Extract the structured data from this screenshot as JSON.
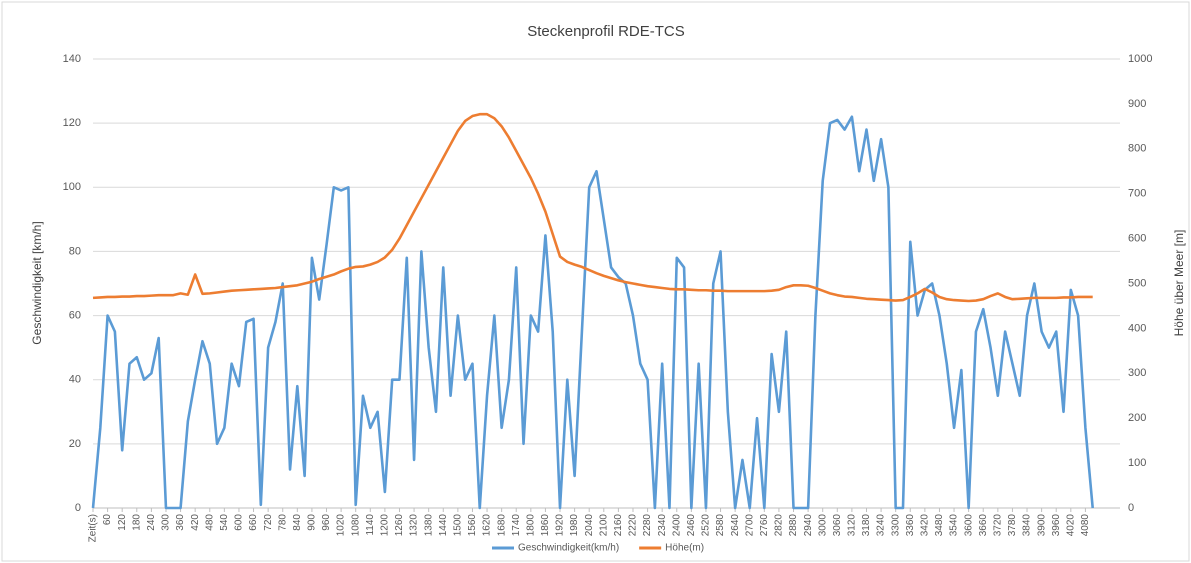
{
  "chart_data": {
    "type": "line",
    "title": "Steckenprofil RDE-TCS",
    "y_label": "Geschwindigkeit [km/h]",
    "y2_label": "Höhe über Meer [m]",
    "xlim": [
      0,
      4140
    ],
    "xticks": [
      {
        "value": 0,
        "label": "Zeit(s)"
      },
      60,
      120,
      180,
      240,
      300,
      360,
      420,
      480,
      540,
      600,
      660,
      720,
      780,
      840,
      900,
      960,
      1020,
      1080,
      1140,
      1200,
      1260,
      1320,
      1380,
      1440,
      1500,
      1560,
      1620,
      1680,
      1740,
      1800,
      1860,
      1920,
      1980,
      2040,
      2100,
      2160,
      2220,
      2280,
      2340,
      2400,
      2460,
      2520,
      2580,
      2640,
      2700,
      2760,
      2820,
      2880,
      2940,
      3000,
      3060,
      3120,
      3180,
      3240,
      3300,
      3360,
      3420,
      3480,
      3540,
      3600,
      3660,
      3720,
      3780,
      3840,
      3900,
      3960,
      4020,
      4080
    ],
    "ylim": [
      0,
      140
    ],
    "yticks": [
      0,
      20,
      40,
      60,
      80,
      100,
      120,
      140
    ],
    "y2lim": [
      0,
      1000
    ],
    "y2ticks": [
      0,
      100,
      200,
      300,
      400,
      500,
      600,
      700,
      800,
      900,
      1000
    ],
    "grid": true,
    "legend": "bottom",
    "x": [
      0,
      30,
      60,
      90,
      120,
      150,
      180,
      210,
      240,
      270,
      300,
      330,
      360,
      390,
      420,
      450,
      480,
      510,
      540,
      570,
      600,
      630,
      660,
      690,
      720,
      750,
      780,
      810,
      840,
      870,
      900,
      930,
      960,
      990,
      1020,
      1050,
      1080,
      1110,
      1140,
      1170,
      1200,
      1230,
      1260,
      1290,
      1320,
      1350,
      1380,
      1410,
      1440,
      1470,
      1500,
      1530,
      1560,
      1590,
      1620,
      1650,
      1680,
      1710,
      1740,
      1770,
      1800,
      1830,
      1860,
      1890,
      1920,
      1950,
      1980,
      2010,
      2040,
      2070,
      2100,
      2130,
      2160,
      2190,
      2220,
      2250,
      2280,
      2310,
      2340,
      2370,
      2400,
      2430,
      2460,
      2490,
      2520,
      2550,
      2580,
      2610,
      2640,
      2670,
      2700,
      2730,
      2760,
      2790,
      2820,
      2850,
      2880,
      2910,
      2940,
      2970,
      3000,
      3030,
      3060,
      3090,
      3120,
      3150,
      3180,
      3210,
      3240,
      3270,
      3300,
      3330,
      3360,
      3390,
      3420,
      3450,
      3480,
      3510,
      3540,
      3570,
      3600,
      3630,
      3660,
      3690,
      3720,
      3750,
      3780,
      3810,
      3840,
      3870,
      3900,
      3930,
      3960,
      3990,
      4020,
      4050,
      4080,
      4110
    ],
    "series": [
      {
        "name": "Geschwindigkeit(km/h)",
        "color": "#5b9bd5",
        "values": [
          0,
          25,
          60,
          55,
          18,
          45,
          47,
          40,
          42,
          53,
          0,
          0,
          0,
          27,
          40,
          52,
          45,
          20,
          25,
          45,
          38,
          58,
          59,
          1,
          50,
          58,
          70,
          12,
          38,
          10,
          78,
          65,
          82,
          100,
          99,
          100,
          1,
          35,
          25,
          30,
          5,
          40,
          40,
          78,
          15,
          80,
          50,
          30,
          75,
          35,
          60,
          40,
          45,
          0,
          35,
          60,
          25,
          40,
          75,
          20,
          60,
          55,
          85,
          55,
          0,
          40,
          10,
          55,
          100,
          105,
          90,
          75,
          72,
          70,
          60,
          45,
          40,
          0,
          45,
          0,
          78,
          75,
          0,
          45,
          0,
          70,
          80,
          30,
          0,
          15,
          0,
          28,
          0,
          48,
          30,
          55,
          0,
          0,
          0,
          60,
          102,
          120,
          121,
          118,
          122,
          105,
          118,
          102,
          115,
          100,
          0,
          0,
          83,
          60,
          68,
          70,
          60,
          45,
          25,
          43,
          0,
          55,
          62,
          50,
          35,
          55,
          45,
          35,
          60,
          70,
          55,
          50,
          55,
          30,
          68,
          60,
          25,
          0
        ]
      },
      {
        "name": "Höhe(m)",
        "color": "#ed7d31",
        "axis": "y2",
        "values": [
          468,
          469,
          470,
          470,
          471,
          471,
          472,
          472,
          473,
          474,
          474,
          474,
          478,
          475,
          520,
          477,
          478,
          480,
          482,
          484,
          485,
          486,
          487,
          488,
          489,
          490,
          492,
          494,
          496,
          500,
          504,
          510,
          515,
          520,
          527,
          533,
          537,
          538,
          542,
          548,
          558,
          575,
          600,
          630,
          660,
          690,
          720,
          750,
          780,
          810,
          840,
          862,
          873,
          877,
          877,
          868,
          850,
          825,
          795,
          765,
          735,
          700,
          660,
          610,
          560,
          548,
          542,
          537,
          530,
          523,
          517,
          512,
          507,
          503,
          500,
          497,
          494,
          492,
          490,
          488,
          487,
          487,
          486,
          485,
          485,
          484,
          484,
          483,
          483,
          483,
          483,
          483,
          483,
          484,
          486,
          492,
          496,
          496,
          495,
          490,
          484,
          478,
          474,
          471,
          470,
          468,
          466,
          465,
          464,
          463,
          462,
          463,
          470,
          478,
          488,
          480,
          470,
          465,
          463,
          462,
          461,
          462,
          465,
          472,
          478,
          470,
          465,
          466,
          467,
          468,
          468,
          468,
          468,
          469,
          469,
          470,
          470,
          470
        ]
      }
    ]
  }
}
